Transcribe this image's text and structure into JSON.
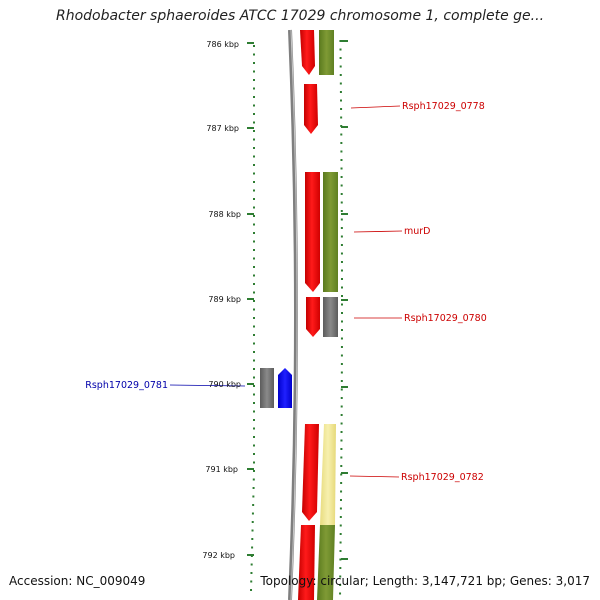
{
  "title": "Rhodobacter sphaeroides ATCC 17029 chromosome 1, complete ge...",
  "footer": {
    "accession": "Accession: NC_009049",
    "stats": "Topology: circular; Length: 3,147,721 bp; Genes: 3,017"
  },
  "kbp_ticks": [
    {
      "label": "786 kbp",
      "kbp": 786
    },
    {
      "label": "787 kbp",
      "kbp": 787
    },
    {
      "label": "788 kbp",
      "kbp": 788
    },
    {
      "label": "789 kbp",
      "kbp": 789
    },
    {
      "label": "790 kbp",
      "kbp": 790
    },
    {
      "label": "791 kbp",
      "kbp": 791
    },
    {
      "label": "792 kbp",
      "kbp": 792
    }
  ],
  "gene_labels": [
    {
      "text": "Rsph17029_0778",
      "color": "#cc0000"
    },
    {
      "text": "murD",
      "color": "#cc0000"
    },
    {
      "text": "Rsph17029_0780",
      "color": "#cc0000"
    },
    {
      "text": "Rsph17029_0781",
      "color": "#0000aa"
    },
    {
      "text": "Rsph17029_0782",
      "color": "#cc0000"
    }
  ],
  "colors": {
    "cds": "#ff0000",
    "gene_green": "#6b8e23",
    "gene_grey": "#707070",
    "gene_yellow": "#f0e68c",
    "reverse_cds": "#0000ff",
    "backbone": "#808080",
    "tick": "#2e7d32"
  }
}
